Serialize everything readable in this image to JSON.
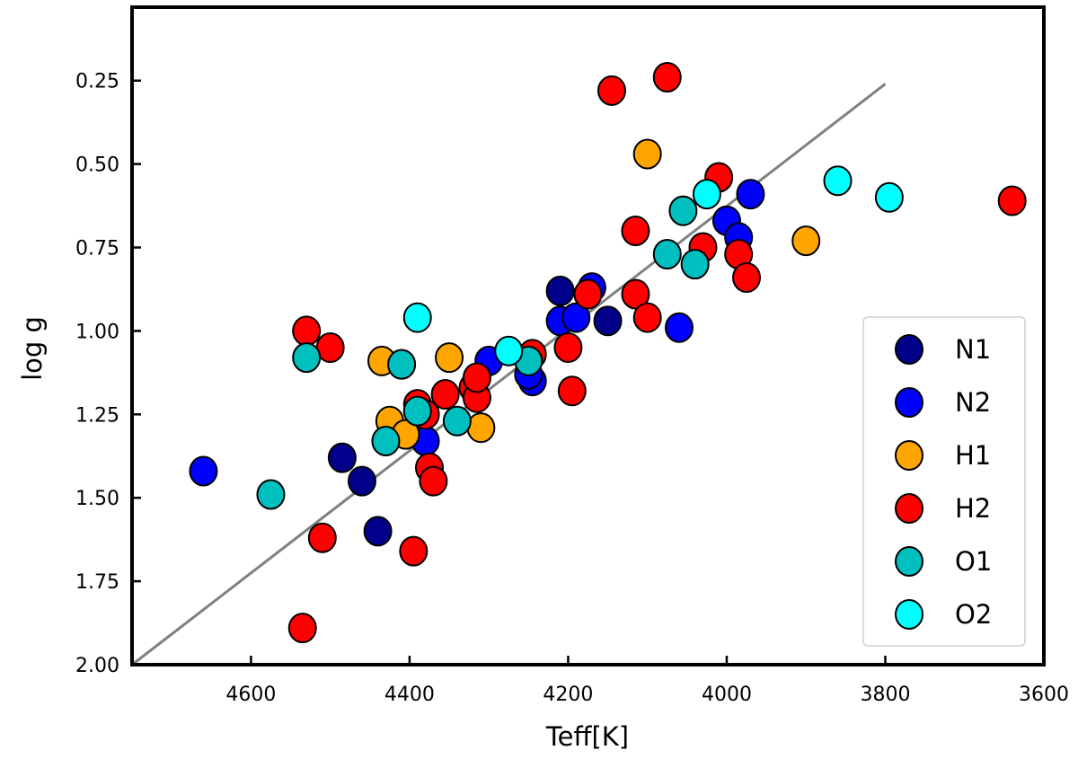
{
  "chart_data": {
    "type": "scatter",
    "xlabel": "Teff[K]",
    "ylabel": "log g",
    "xlim": [
      4750,
      3600
    ],
    "ylim": [
      2.0,
      0.03
    ],
    "x_inverted": true,
    "y_inverted": true,
    "xticks": [
      "4600",
      "4400",
      "4200",
      "4000",
      "3800",
      "3600"
    ],
    "yticks": [
      "0.25",
      "0.50",
      "0.75",
      "1.00",
      "1.25",
      "1.50",
      "1.75",
      "2.00"
    ],
    "legend_position": "lower-right",
    "trend_line": {
      "color": "#808080",
      "x": [
        4750,
        3800
      ],
      "y": [
        2.0,
        0.26
      ]
    },
    "series": [
      {
        "name": "N1",
        "color": "#00008B",
        "x": [
          4210,
          4150,
          4440,
          4485,
          4460,
          4410
        ],
        "y": [
          0.88,
          0.97,
          1.6,
          1.38,
          1.45,
          1.1
        ]
      },
      {
        "name": "N2",
        "color": "#0000FF",
        "x": [
          4660,
          4300,
          4245,
          4210,
          4190,
          4170,
          4060,
          4000,
          3985,
          3970,
          4380,
          4250
        ],
        "y": [
          1.42,
          1.09,
          1.15,
          0.97,
          0.96,
          0.87,
          0.99,
          0.67,
          0.72,
          0.59,
          1.33,
          1.13
        ]
      },
      {
        "name": "H1",
        "color": "#FFA500",
        "x": [
          4435,
          4425,
          4405,
          4350,
          4310,
          4100,
          3900
        ],
        "y": [
          1.09,
          1.27,
          1.31,
          1.08,
          1.29,
          0.47,
          0.73
        ]
      },
      {
        "name": "H2",
        "color": "#FF0000",
        "x": [
          4530,
          4500,
          4510,
          4535,
          4395,
          4390,
          4375,
          4380,
          4370,
          4355,
          4320,
          4315,
          4315,
          4245,
          4200,
          4195,
          4175,
          4145,
          4075,
          4115,
          4115,
          4100,
          4030,
          4010,
          3985,
          3975,
          3640
        ],
        "y": [
          1.0,
          1.05,
          1.62,
          1.89,
          1.66,
          1.22,
          1.41,
          1.25,
          1.45,
          1.19,
          1.17,
          1.2,
          1.14,
          1.07,
          1.05,
          1.18,
          0.89,
          0.28,
          0.24,
          0.7,
          0.89,
          0.96,
          0.75,
          0.54,
          0.77,
          0.84,
          0.61
        ]
      },
      {
        "name": "O1",
        "color": "#00BFBF",
        "x": [
          4530,
          4575,
          4430,
          4390,
          4410,
          4340,
          4250,
          4075,
          4055,
          4040
        ],
        "y": [
          1.08,
          1.49,
          1.33,
          1.24,
          1.1,
          1.27,
          1.09,
          0.77,
          0.64,
          0.8
        ]
      },
      {
        "name": "O2",
        "color": "#00FFFF",
        "x": [
          4390,
          4275,
          4025,
          3860,
          3795
        ],
        "y": [
          0.96,
          1.06,
          0.59,
          0.55,
          0.6
        ]
      }
    ]
  }
}
